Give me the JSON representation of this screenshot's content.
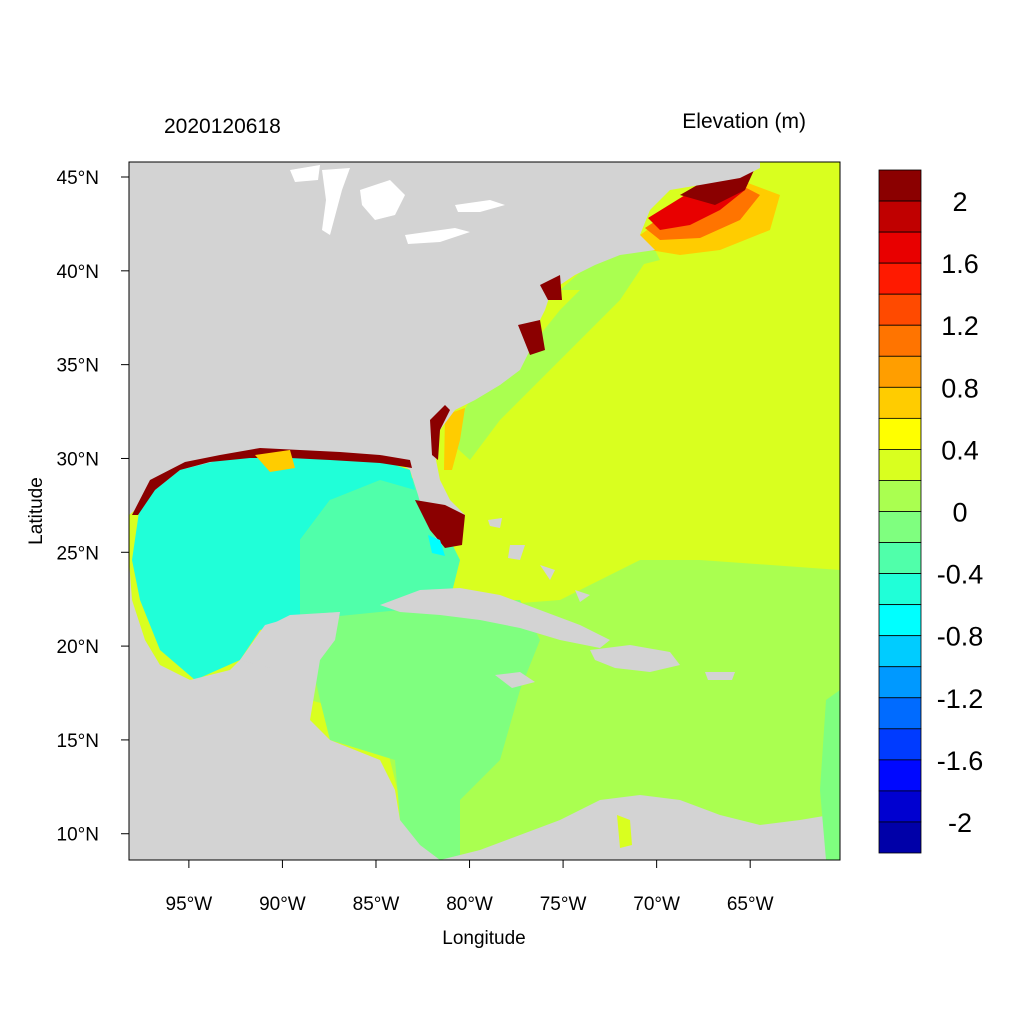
{
  "map": {
    "date_label": "2020120618",
    "title": "Elevation (m)",
    "xlabel": "Longitude",
    "ylabel": "Latitude",
    "extent": {
      "lon_min": -98.2,
      "lon_max": -60.2,
      "lat_min": 8.6,
      "lat_max": 45.8
    },
    "x_ticks": [
      {
        "value": -95,
        "label": "95°W"
      },
      {
        "value": -90,
        "label": "90°W"
      },
      {
        "value": -85,
        "label": "85°W"
      },
      {
        "value": -80,
        "label": "80°W"
      },
      {
        "value": -75,
        "label": "75°W"
      },
      {
        "value": -70,
        "label": "70°W"
      },
      {
        "value": -65,
        "label": "65°W"
      }
    ],
    "y_ticks": [
      {
        "value": 45,
        "label": "45°N"
      },
      {
        "value": 40,
        "label": "40°N"
      },
      {
        "value": 35,
        "label": "35°N"
      },
      {
        "value": 30,
        "label": "30°N"
      },
      {
        "value": 25,
        "label": "25°N"
      },
      {
        "value": 20,
        "label": "20°N"
      },
      {
        "value": 15,
        "label": "15°N"
      },
      {
        "value": 10,
        "label": "10°N"
      }
    ],
    "colors": {
      "land": "#d3d3d3",
      "lakes": "#ffffff"
    },
    "colorbar": {
      "colors": [
        "#8b0000",
        "#c00000",
        "#e80000",
        "#ff1a00",
        "#ff4a00",
        "#ff7400",
        "#ff9e00",
        "#ffcc00",
        "#ffff00",
        "#d9ff1f",
        "#aaff50",
        "#7fff7f",
        "#50ffaa",
        "#20ffd8",
        "#00ffff",
        "#00ccff",
        "#0099ff",
        "#006bff",
        "#003bff",
        "#0008ff",
        "#0000d0",
        "#0000a8"
      ],
      "labels": [
        "2",
        "1.6",
        "1.2",
        "0.8",
        "0.4",
        "0",
        "-0.4",
        "-0.8",
        "-1.2",
        "-1.6",
        "-2"
      ]
    }
  }
}
